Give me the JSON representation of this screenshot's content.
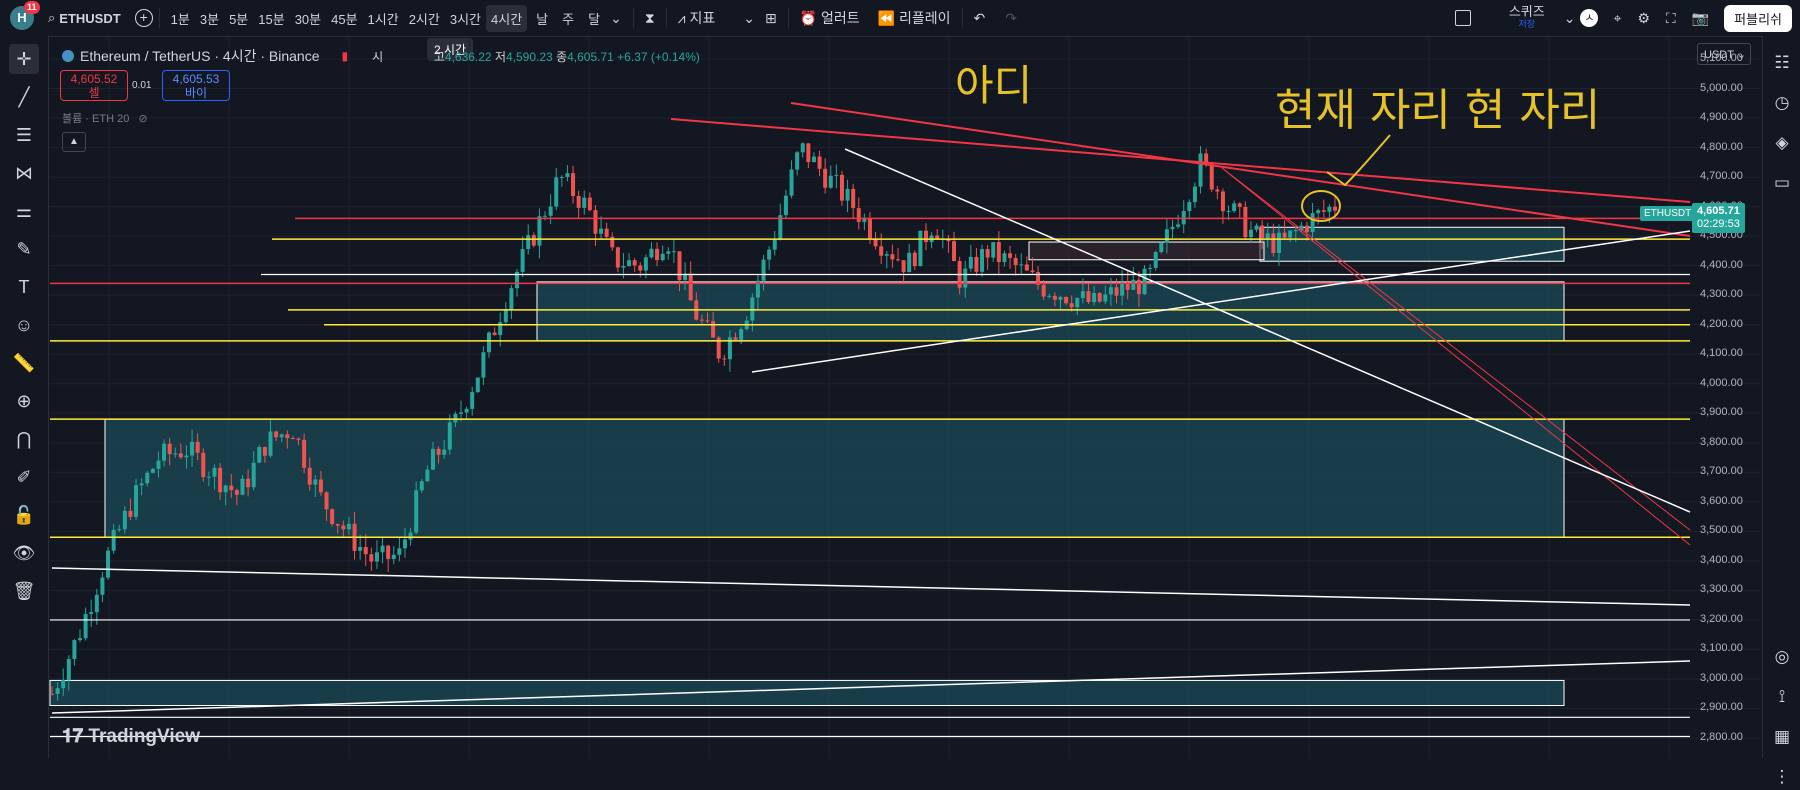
{
  "toolbar": {
    "avatar_letter": "H",
    "notif_count": "11",
    "symbol": "ETHUSDT",
    "intervals": [
      "1분",
      "3분",
      "5분",
      "15분",
      "30분",
      "45분",
      "1시간",
      "2시간",
      "3시간",
      "4시간"
    ],
    "active_interval": "4시간",
    "period_buttons": [
      "날",
      "주",
      "달"
    ],
    "indicators_label": "지표",
    "alerts_label": "얼러트",
    "replay_label": "리플레이",
    "squeeze_label": "스퀴즈",
    "squeeze_sub": "저장",
    "user_initial": "ㅅ",
    "publish_label": "퍼블리쉬"
  },
  "tooltip": "2 시간",
  "legend": {
    "title": "Ethereum / TetherUS · 4시간 · Binance",
    "open_label": "시",
    "high_label": "고",
    "high": "4,636.22",
    "low_label": "저",
    "low": "4,590.23",
    "close_label": "종",
    "close": "4,605.71",
    "change": "+6.37 (+0.14%)"
  },
  "trade": {
    "sell_price": "4,605.52",
    "sell_label": "셀",
    "spread": "0.01",
    "buy_price": "4,605.53",
    "buy_label": "바이"
  },
  "volume_label": "볼륨 · ETH 20",
  "currency": "USDT",
  "current_price": {
    "ticker": "ETHUSDT",
    "price": "4,605.71",
    "countdown": "02:29:53"
  },
  "price_axis": [
    "5,100.00",
    "5,000.00",
    "4,900.00",
    "4,800.00",
    "4,700.00",
    "4,600.00",
    "4,500.00",
    "4,400.00",
    "4,300.00",
    "4,200.00",
    "4,100.00",
    "4,000.00",
    "3,900.00",
    "3,800.00",
    "3,700.00",
    "3,600.00",
    "3,500.00",
    "3,400.00",
    "3,300.00",
    "3,200.00",
    "3,100.00",
    "3,000.00",
    "2,900.00",
    "2,800.00"
  ],
  "annotations": {
    "left_text": "아디",
    "right_text": "현재 자리 현 자리"
  },
  "logo": "TradingView",
  "colors": {
    "background": "#131722",
    "up": "#26a69a",
    "down": "#ef5350",
    "support_yellow": "#ffeb3b",
    "resistance_red": "#f23645",
    "box_fill": "#1b4a55",
    "handwriting": "#e6c229"
  },
  "chart_data": {
    "type": "candlestick",
    "symbol": "ETHUSDT",
    "ylim": [
      2750,
      5150
    ],
    "approx_closes": [
      2950,
      3150,
      3400,
      3600,
      3750,
      3780,
      3700,
      3620,
      3800,
      3850,
      3620,
      3500,
      3400,
      3420,
      3700,
      3850,
      4050,
      4300,
      4500,
      4700,
      4600,
      4420,
      4400,
      4500,
      4250,
      4100,
      4250,
      4500,
      4800,
      4700,
      4600,
      4480,
      4400,
      4550,
      4350,
      4450,
      4400,
      4330,
      4300,
      4270,
      4320,
      4350,
      4550,
      4750,
      4600,
      4500,
      4470,
      4550,
      4605
    ],
    "last_close": 4605.71,
    "horizontal_lines_yellow": [
      4490,
      4250,
      4200,
      4145,
      3880,
      3480
    ],
    "horizontal_lines_red": [
      4560,
      4340
    ],
    "horizontal_lines_white": [
      4370,
      3200,
      2870,
      2805
    ]
  }
}
